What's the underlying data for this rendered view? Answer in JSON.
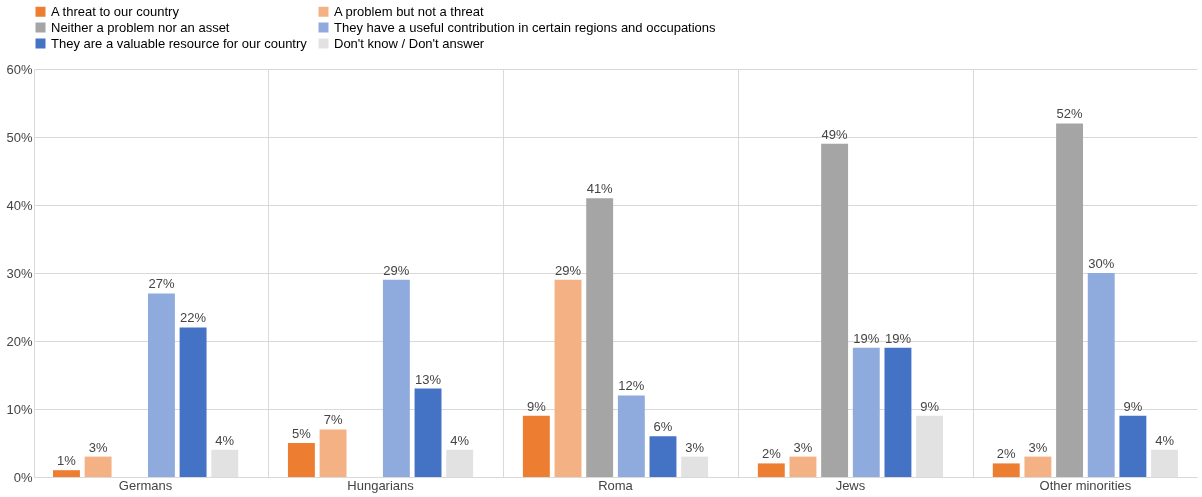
{
  "chart_data": {
    "type": "bar",
    "categories": [
      "Germans",
      "Hungarians",
      "Roma",
      "Jews",
      "Other minorities"
    ],
    "series": [
      {
        "name": "A threat to our country",
        "color": "#ed7d31",
        "values": [
          1,
          5,
          9,
          2,
          2
        ],
        "value_labels": [
          "1%",
          "5%",
          "9%",
          "2%",
          "2%"
        ]
      },
      {
        "name": "A problem but not a threat",
        "color": "#f4b183",
        "values": [
          3,
          7,
          29,
          3,
          3
        ],
        "value_labels": [
          "3%",
          "7%",
          "29%",
          "3%",
          "3%"
        ]
      },
      {
        "name": "Neither a problem nor an asset",
        "color": "#a5a5a5",
        "values": [
          null,
          null,
          41,
          49,
          52
        ],
        "value_labels": [
          null,
          null,
          "41%",
          "49%",
          "52%"
        ]
      },
      {
        "name": "They have a useful contribution in certain regions and occupations",
        "color": "#8faadc",
        "values": [
          27,
          29,
          12,
          19,
          30
        ],
        "value_labels": [
          "27%",
          "29%",
          "12%",
          "19%",
          "30%"
        ]
      },
      {
        "name": "They are a valuable resource for our country",
        "color": "#4472c4",
        "values": [
          22,
          13,
          6,
          19,
          9
        ],
        "value_labels": [
          "22%",
          "13%",
          "6%",
          "19%",
          "9%"
        ]
      },
      {
        "name": "Don't know / Don't answer",
        "color": "#e2e2e2",
        "values": [
          4,
          4,
          3,
          9,
          4
        ],
        "value_labels": [
          "4%",
          "4%",
          "3%",
          "9%",
          "4%"
        ]
      }
    ],
    "ylim": [
      0,
      60
    ],
    "yticks": [
      {
        "value": 0,
        "label": "0%"
      },
      {
        "value": 10,
        "label": "10%"
      },
      {
        "value": 20,
        "label": "20%"
      },
      {
        "value": 30,
        "label": "30%"
      },
      {
        "value": 40,
        "label": "40%"
      },
      {
        "value": 50,
        "label": "50%"
      },
      {
        "value": 60,
        "label": "60%"
      }
    ],
    "grid": true,
    "legend": "top"
  }
}
